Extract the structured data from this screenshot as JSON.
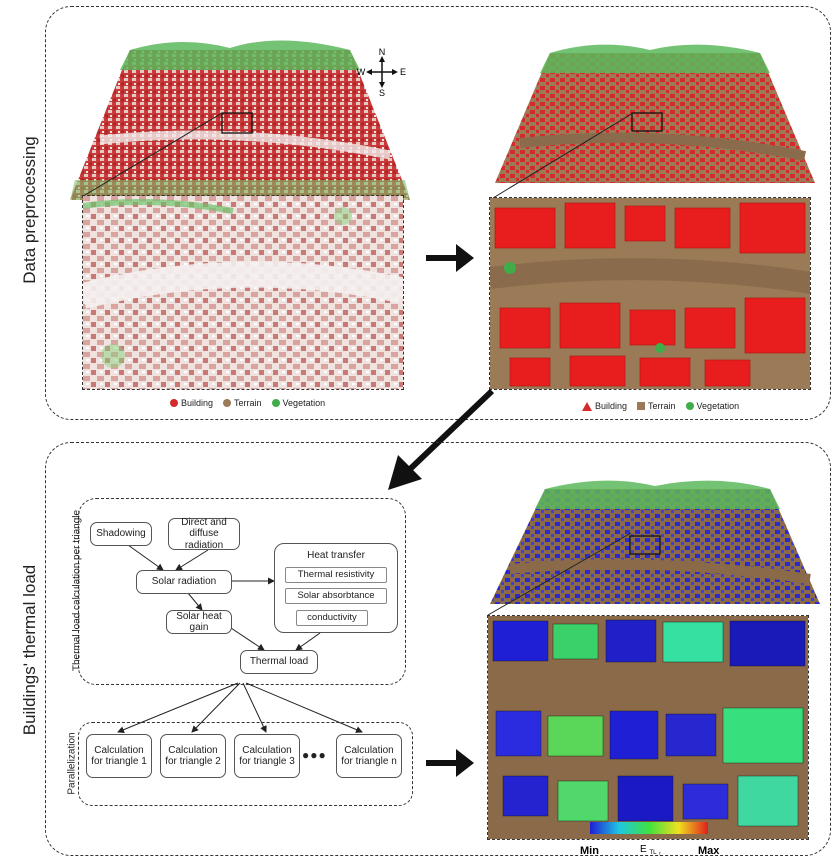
{
  "sections": {
    "preprocessing": "Data preprocessing",
    "thermal_load": "Buildings' thermal load"
  },
  "compass": {
    "north": "N",
    "south": "S",
    "west": "W",
    "east": "E"
  },
  "legend_left": {
    "items": [
      {
        "label": "Building",
        "color": "#d42a2a"
      },
      {
        "label": "Terrain",
        "color": "#9a7a57"
      },
      {
        "label": "Vegetation",
        "color": "#3fae49"
      }
    ]
  },
  "legend_right": {
    "items": [
      {
        "label": "Building",
        "color": "#d42a2a"
      },
      {
        "label": "Terrain",
        "color": "#9a7a57"
      },
      {
        "label": "Vegetation",
        "color": "#3fae49"
      }
    ]
  },
  "flowchart": {
    "group_label": "Thermal load calculation per triangle",
    "shadowing": "Shadowing",
    "direct_diffuse": "Direct and diffuse radiation",
    "solar_radiation": "Solar radiation",
    "solar_heat_gain": "Solar heat gain",
    "heat_transfer": "Heat transfer",
    "thermal_resistivity": "Thermal resistivity",
    "solar_absorbtance": "Solar absorbtance",
    "conductivity": "conductivity",
    "thermal_load": "Thermal load"
  },
  "parallelization": {
    "group_label": "Parallelization",
    "calc1": "Calculation for triangle 1",
    "calc2": "Calculation for triangle 2",
    "calc3": "Calculation for triangle 3",
    "ellipsis": "●●●",
    "calcn": "Calculation for triangle n"
  },
  "colorbar": {
    "min": "Min",
    "max": "Max",
    "symbol": "E",
    "symbol_sub": "TL",
    "symbol_subsub": "t"
  }
}
